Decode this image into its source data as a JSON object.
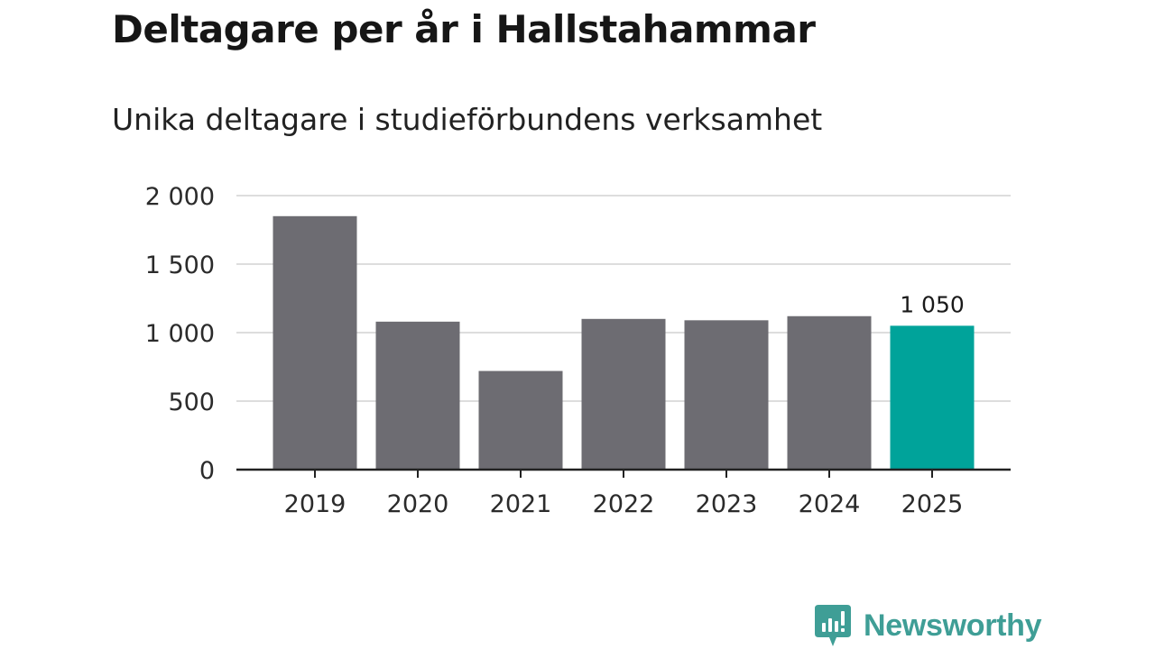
{
  "title": "Deltagare per år i Hallstahammar",
  "subtitle": "Unika deltagare i studieförbundens verksamhet",
  "brand": {
    "name": "Newsworthy",
    "color": "#3f9e96",
    "icon": "newsworthy-logo-icon"
  },
  "colors": {
    "bar": "#6d6c72",
    "highlight": "#00a39a",
    "grid": "#dddddd",
    "axis": "#222222"
  },
  "chart_data": {
    "type": "bar",
    "title": "Deltagare per år i Hallstahammar",
    "subtitle": "Unika deltagare i studieförbundens verksamhet",
    "categories": [
      "2019",
      "2020",
      "2021",
      "2022",
      "2023",
      "2024",
      "2025"
    ],
    "values": [
      1850,
      1080,
      720,
      1100,
      1090,
      1120,
      1050
    ],
    "highlight_index": 6,
    "data_labels": [
      {
        "index": 6,
        "text": "1 050"
      }
    ],
    "xlabel": "",
    "ylabel": "",
    "ylim": [
      0,
      2000
    ],
    "yticks": [
      0,
      500,
      1000,
      1500,
      2000
    ],
    "ytick_labels": [
      "0",
      "500",
      "1 000",
      "1 500",
      "2 000"
    ],
    "grid": true,
    "legend": "none"
  }
}
